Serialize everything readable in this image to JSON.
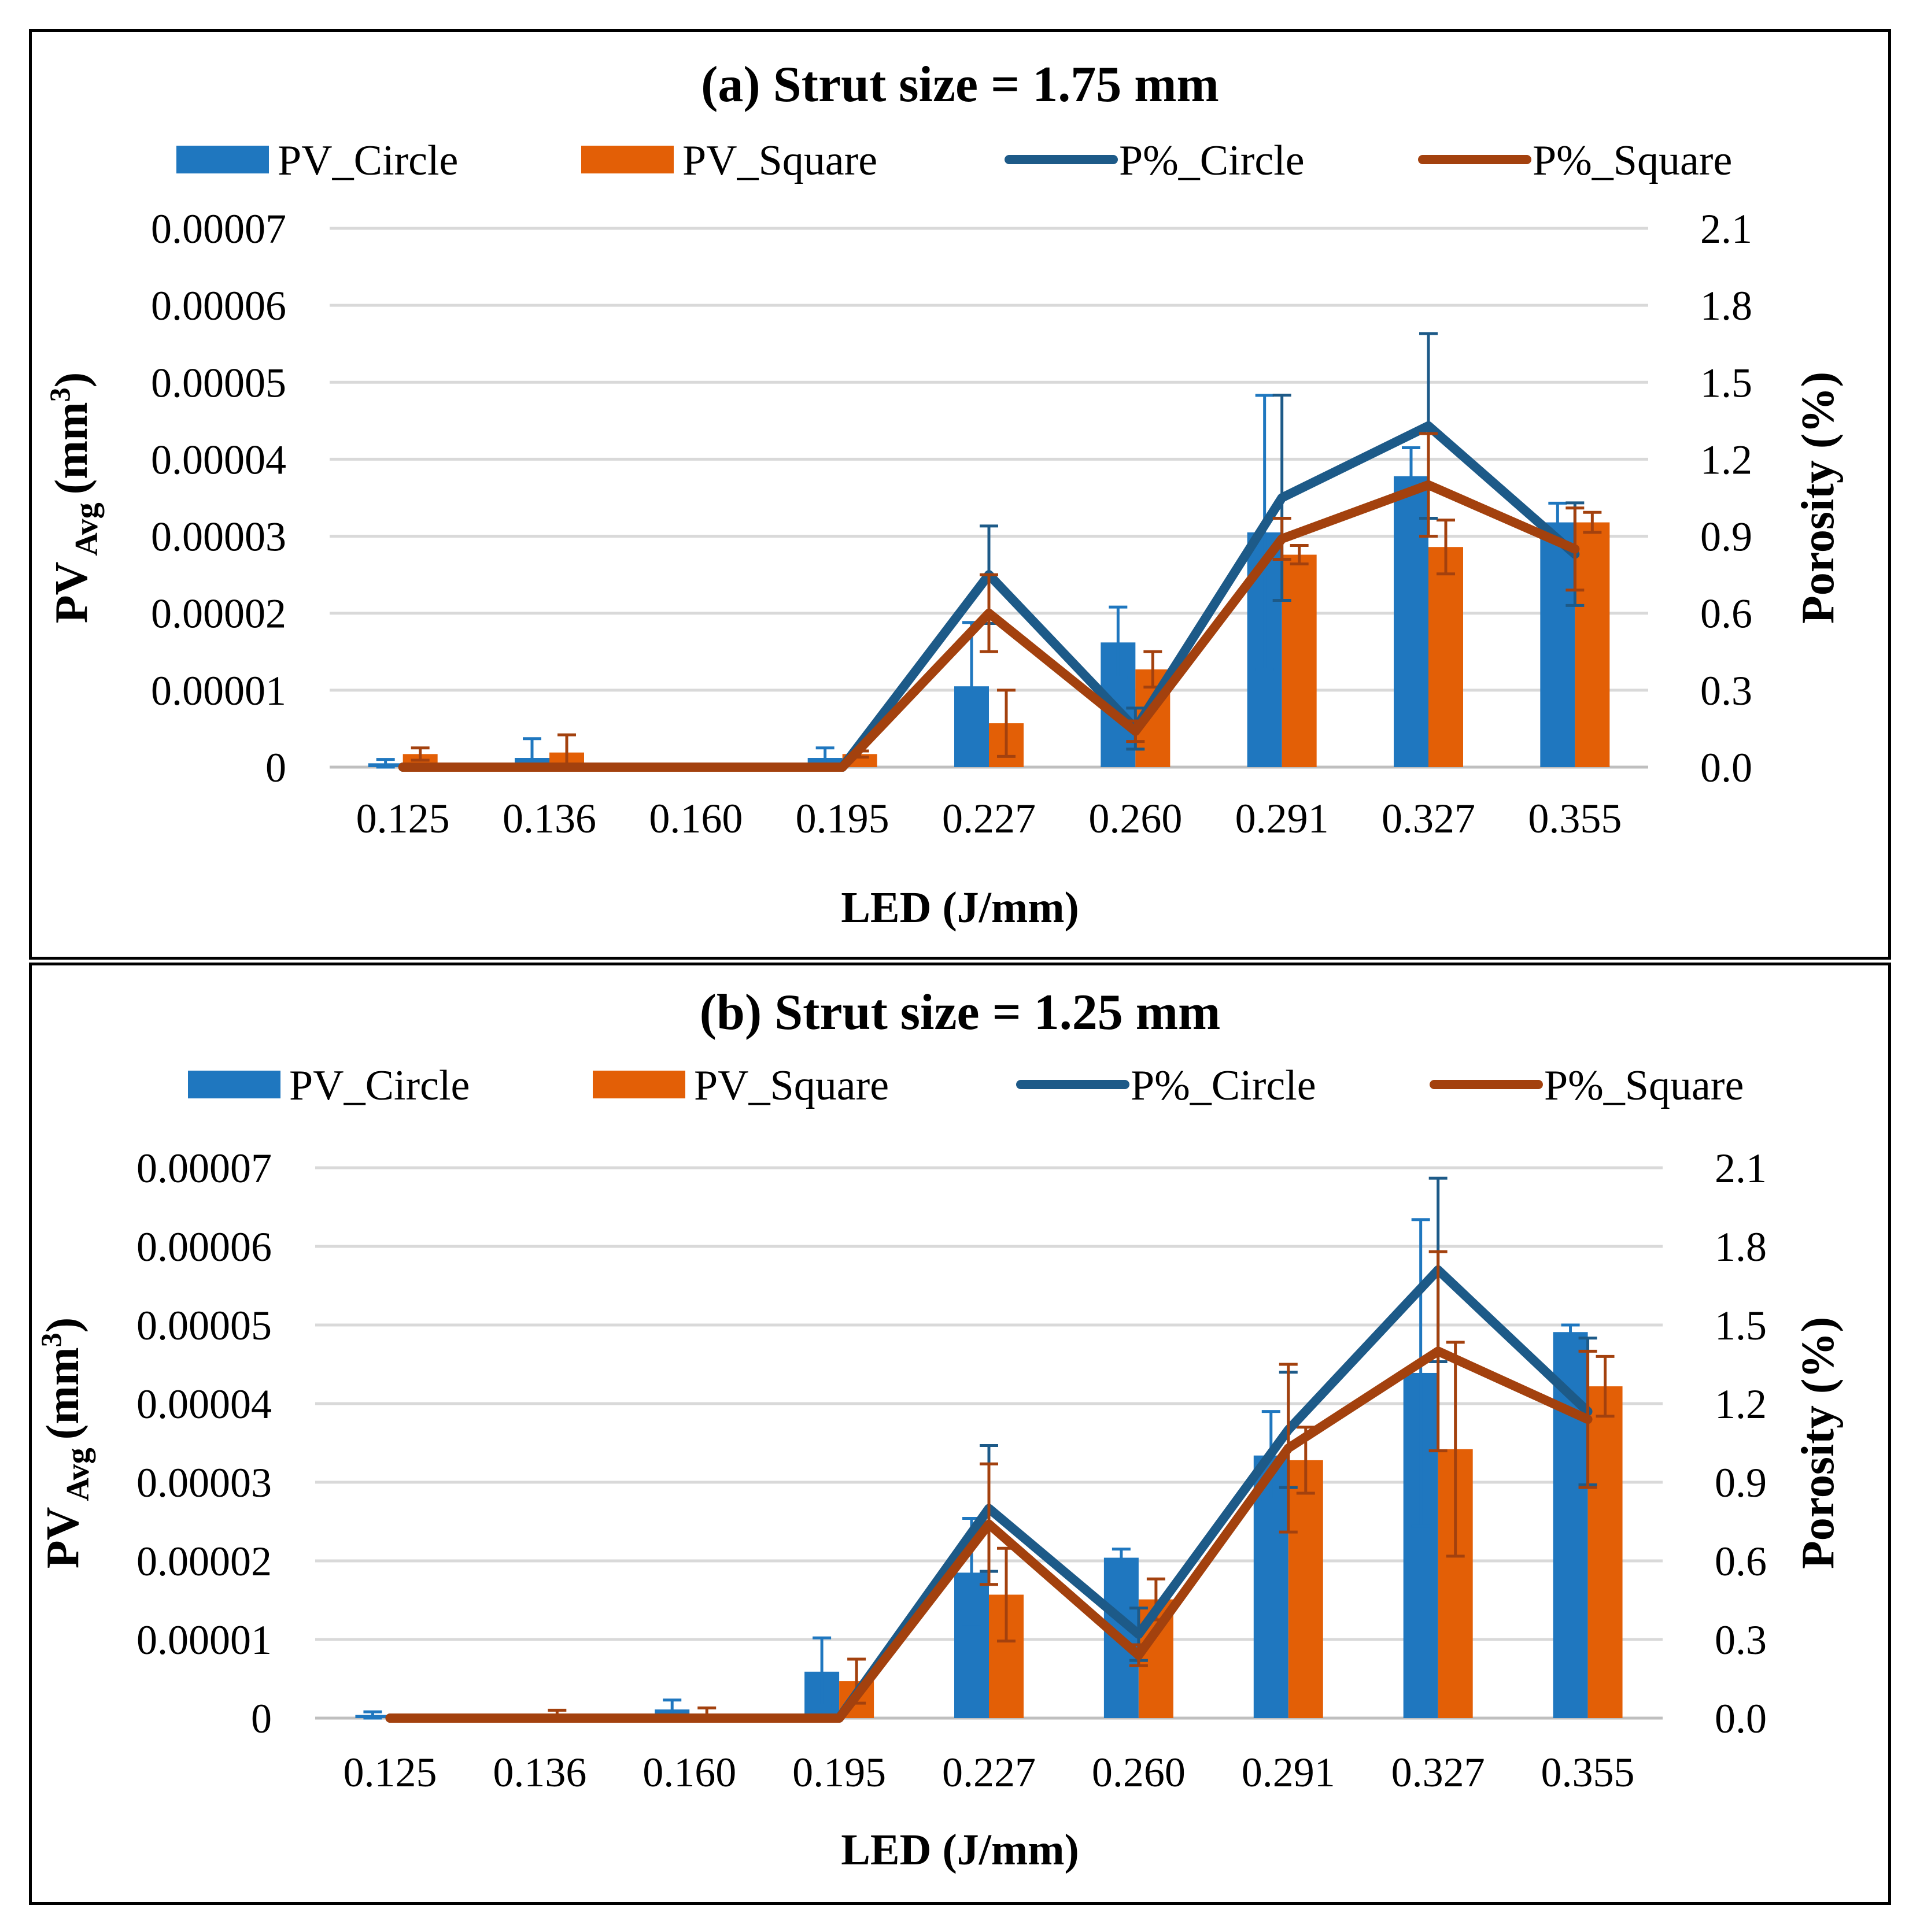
{
  "colors": {
    "pv_circle": "#1F77BF",
    "pv_square": "#E35F06",
    "p_circle": "#1D5A88",
    "p_square": "#A3410E",
    "grid": "#D9D9D9"
  },
  "chart_data": [
    {
      "type": "bar",
      "title": "(a) Strut size = 1.75 mm",
      "xlabel": "LED (J/mm)",
      "ylabel_main": "PV",
      "ylabel_sub": "Avg",
      "ylabel_unit": "(mm",
      "ylabel_sup": "3",
      "ylabel_close": ")",
      "y2label": "Porosity (%)",
      "categories": [
        "0.125",
        "0.136",
        "0.160",
        "0.195",
        "0.227",
        "0.260",
        "0.291",
        "0.327",
        "0.355"
      ],
      "ylim": [
        0,
        7e-05
      ],
      "yticks": [
        "0",
        "0.00001",
        "0.00002",
        "0.00003",
        "0.00004",
        "0.00005",
        "0.00006",
        "0.00007"
      ],
      "y2lim": [
        0,
        2.1
      ],
      "y2ticks": [
        "0.0",
        "0.3",
        "0.6",
        "0.9",
        "1.2",
        "1.5",
        "1.8",
        "2.1"
      ],
      "grid": true,
      "legend": "top",
      "series": [
        {
          "name": "PV_Circle",
          "kind": "bar",
          "axis": "left",
          "values": [
            5e-07,
            1.2e-06,
            2e-07,
            1.2e-06,
            1.05e-05,
            1.62e-05,
            3.05e-05,
            3.78e-05,
            3.18e-05
          ],
          "errors": [
            5e-07,
            2.5e-06,
            0.0,
            1.3e-06,
            8.3e-06,
            4.6e-06,
            1.78e-05,
            3.7e-06,
            2.5e-06
          ]
        },
        {
          "name": "PV_Square",
          "kind": "bar",
          "axis": "left",
          "values": [
            1.7e-06,
            1.9e-06,
            1e-07,
            1.7e-06,
            5.7e-06,
            1.27e-05,
            2.76e-05,
            2.86e-05,
            3.18e-05
          ],
          "errors": [
            8e-07,
            2.3e-06,
            0.0,
            4e-07,
            4.3e-06,
            2.3e-06,
            1.2e-06,
            3.5e-06,
            1.3e-06
          ]
        },
        {
          "name": "P%_Circle",
          "kind": "line",
          "axis": "right",
          "values": [
            0.0,
            0.0,
            0.0,
            0.0,
            0.75,
            0.15,
            1.05,
            1.33,
            0.83
          ],
          "errors": [
            0,
            0,
            0,
            0,
            0.19,
            0.08,
            0.4,
            0.36,
            0.2
          ]
        },
        {
          "name": "P%_Square",
          "kind": "line",
          "axis": "right",
          "values": [
            0.0,
            0.0,
            0.0,
            0.0,
            0.6,
            0.14,
            0.89,
            1.1,
            0.85
          ],
          "errors": [
            0,
            0,
            0,
            0,
            0.15,
            0.04,
            0.08,
            0.2,
            0.16
          ]
        }
      ]
    },
    {
      "type": "bar",
      "title": "(b) Strut size = 1.25 mm",
      "xlabel": "LED (J/mm)",
      "ylabel_main": "PV",
      "ylabel_sub": "Avg",
      "ylabel_unit": "(mm",
      "ylabel_sup": "3",
      "ylabel_close": ")",
      "y2label": "Porosity (%)",
      "categories": [
        "0.125",
        "0.136",
        "0.160",
        "0.195",
        "0.227",
        "0.260",
        "0.291",
        "0.327",
        "0.355"
      ],
      "ylim": [
        0,
        7e-05
      ],
      "yticks": [
        "0",
        "0.00001",
        "0.00002",
        "0.00003",
        "0.00004",
        "0.00005",
        "0.00006",
        "0.00007"
      ],
      "y2lim": [
        0,
        2.1
      ],
      "y2ticks": [
        "0.0",
        "0.3",
        "0.6",
        "0.9",
        "1.2",
        "1.5",
        "1.8",
        "2.1"
      ],
      "grid": true,
      "legend": "top",
      "series": [
        {
          "name": "PV_Circle",
          "kind": "bar",
          "axis": "left",
          "values": [
            4e-07,
            0.0,
            1.1e-06,
            5.9e-06,
            1.85e-05,
            2.04e-05,
            3.34e-05,
            4.39e-05,
            4.91e-05
          ],
          "errors": [
            4e-07,
            0.0,
            1.2e-06,
            4.3e-06,
            6.9e-06,
            1.1e-06,
            5.6e-06,
            1.95e-05,
            9e-07
          ]
        },
        {
          "name": "PV_Square",
          "kind": "bar",
          "axis": "left",
          "values": [
            0.0,
            2e-07,
            5e-07,
            4.7e-06,
            1.57e-05,
            1.51e-05,
            3.28e-05,
            3.42e-05,
            4.22e-05
          ],
          "errors": [
            0.0,
            8e-07,
            8e-07,
            2.8e-06,
            5.9e-06,
            2.6e-06,
            4.2e-06,
            1.36e-05,
            3.8e-06
          ]
        },
        {
          "name": "P%_Circle",
          "kind": "line",
          "axis": "right",
          "values": [
            0.0,
            0.0,
            0.0,
            0.0,
            0.8,
            0.32,
            1.1,
            1.71,
            1.17
          ],
          "errors": [
            0,
            0,
            0,
            0,
            0.24,
            0.1,
            0.22,
            0.35,
            0.28
          ]
        },
        {
          "name": "P%_Square",
          "kind": "line",
          "axis": "right",
          "values": [
            0.0,
            0.0,
            0.0,
            0.0,
            0.74,
            0.24,
            1.03,
            1.4,
            1.14
          ],
          "errors": [
            0,
            0,
            0,
            0,
            0.23,
            0.04,
            0.32,
            0.38,
            0.26
          ]
        }
      ]
    }
  ]
}
